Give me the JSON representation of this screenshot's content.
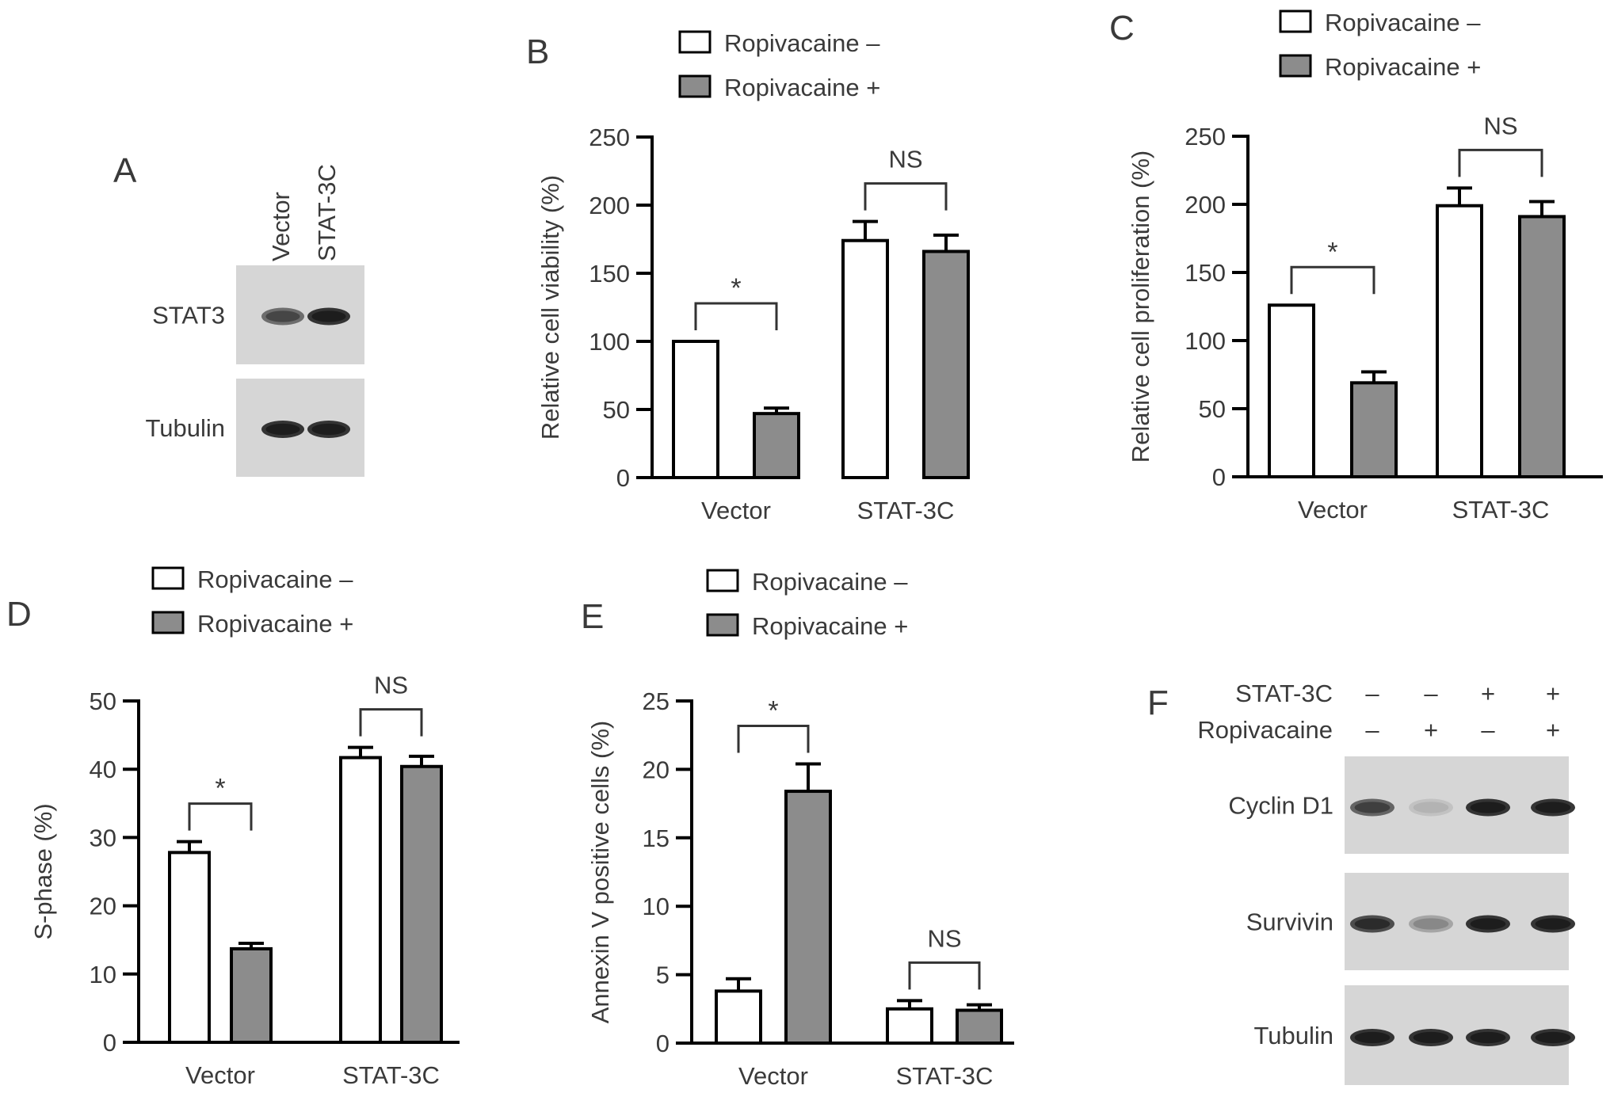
{
  "panels": {
    "A": {
      "letter": "A",
      "lanes": [
        "Vector",
        "STAT-3C"
      ],
      "blots": [
        {
          "label": "STAT3",
          "band_intensity": [
            0.65,
            1.0
          ]
        },
        {
          "label": "Tubulin",
          "band_intensity": [
            1.0,
            1.0
          ]
        }
      ]
    },
    "F": {
      "letter": "F",
      "condition_rows": [
        {
          "label": "STAT-3C",
          "signs": [
            "–",
            "–",
            "+",
            "+"
          ]
        },
        {
          "label": "Ropivacaine",
          "signs": [
            "–",
            "+",
            "–",
            "+"
          ]
        }
      ],
      "blots": [
        {
          "label": "Cyclin D1",
          "band_intensity": [
            0.7,
            0.12,
            1.0,
            1.0
          ]
        },
        {
          "label": "Survivin",
          "band_intensity": [
            0.85,
            0.3,
            1.0,
            1.0
          ]
        },
        {
          "label": "Tubulin",
          "band_intensity": [
            1.0,
            1.0,
            1.0,
            1.0
          ]
        }
      ]
    }
  },
  "colors": {
    "control_bar": "#ffffff",
    "treated_bar": "#8c8c8c",
    "stroke": "#000000",
    "text": "#3a3a3a"
  },
  "chart_data": [
    {
      "panel": "B",
      "type": "bar",
      "title": "",
      "xlabel": "",
      "ylabel": "Relative cell viability (%)",
      "ylim": [
        0,
        250
      ],
      "yticks": [
        0,
        50,
        100,
        150,
        200,
        250
      ],
      "categories": [
        "Vector",
        "STAT-3C"
      ],
      "legend": {
        "position": "top",
        "entries": [
          "Ropivacaine –",
          "Ropivacaine +"
        ]
      },
      "series": [
        {
          "name": "Ropivacaine –",
          "values": [
            100,
            174
          ],
          "errors": [
            0,
            14
          ]
        },
        {
          "name": "Ropivacaine +",
          "values": [
            47,
            166
          ],
          "errors": [
            4,
            12
          ]
        }
      ],
      "annotations": [
        "*",
        "NS"
      ]
    },
    {
      "panel": "C",
      "type": "bar",
      "title": "",
      "xlabel": "",
      "ylabel": "Relative cell proliferation (%)",
      "ylim": [
        0,
        250
      ],
      "yticks": [
        0,
        50,
        100,
        150,
        200,
        250
      ],
      "categories": [
        "Vector",
        "STAT-3C"
      ],
      "legend": {
        "position": "top",
        "entries": [
          "Ropivacaine –",
          "Ropivacaine +"
        ]
      },
      "series": [
        {
          "name": "Ropivacaine –",
          "values": [
            126,
            199
          ],
          "errors": [
            0,
            13
          ]
        },
        {
          "name": "Ropivacaine +",
          "values": [
            69,
            191
          ],
          "errors": [
            8,
            11
          ]
        }
      ],
      "annotations": [
        "*",
        "NS"
      ]
    },
    {
      "panel": "D",
      "type": "bar",
      "title": "",
      "xlabel": "",
      "ylabel": "S-phase (%)",
      "ylim": [
        0,
        50
      ],
      "yticks": [
        0,
        10,
        20,
        30,
        40,
        50
      ],
      "categories": [
        "Vector",
        "STAT-3C"
      ],
      "legend": {
        "position": "top",
        "entries": [
          "Ropivacaine –",
          "Ropivacaine +"
        ]
      },
      "series": [
        {
          "name": "Ropivacaine –",
          "values": [
            27.8,
            41.7
          ],
          "errors": [
            1.6,
            1.5
          ]
        },
        {
          "name": "Ropivacaine +",
          "values": [
            13.7,
            40.4
          ],
          "errors": [
            0.8,
            1.5
          ]
        }
      ],
      "annotations": [
        "*",
        "NS"
      ]
    },
    {
      "panel": "E",
      "type": "bar",
      "title": "",
      "xlabel": "",
      "ylabel": "Annexin V positive cells (%)",
      "ylim": [
        0,
        25
      ],
      "yticks": [
        0,
        5,
        10,
        15,
        20,
        25
      ],
      "categories": [
        "Vector",
        "STAT-3C"
      ],
      "legend": {
        "position": "top",
        "entries": [
          "Ropivacaine –",
          "Ropivacaine +"
        ]
      },
      "series": [
        {
          "name": "Ropivacaine –",
          "values": [
            3.8,
            2.5
          ],
          "errors": [
            0.9,
            0.6
          ]
        },
        {
          "name": "Ropivacaine +",
          "values": [
            18.4,
            2.4
          ],
          "errors": [
            2.0,
            0.4
          ]
        }
      ],
      "annotations": [
        "*",
        "NS"
      ]
    }
  ]
}
